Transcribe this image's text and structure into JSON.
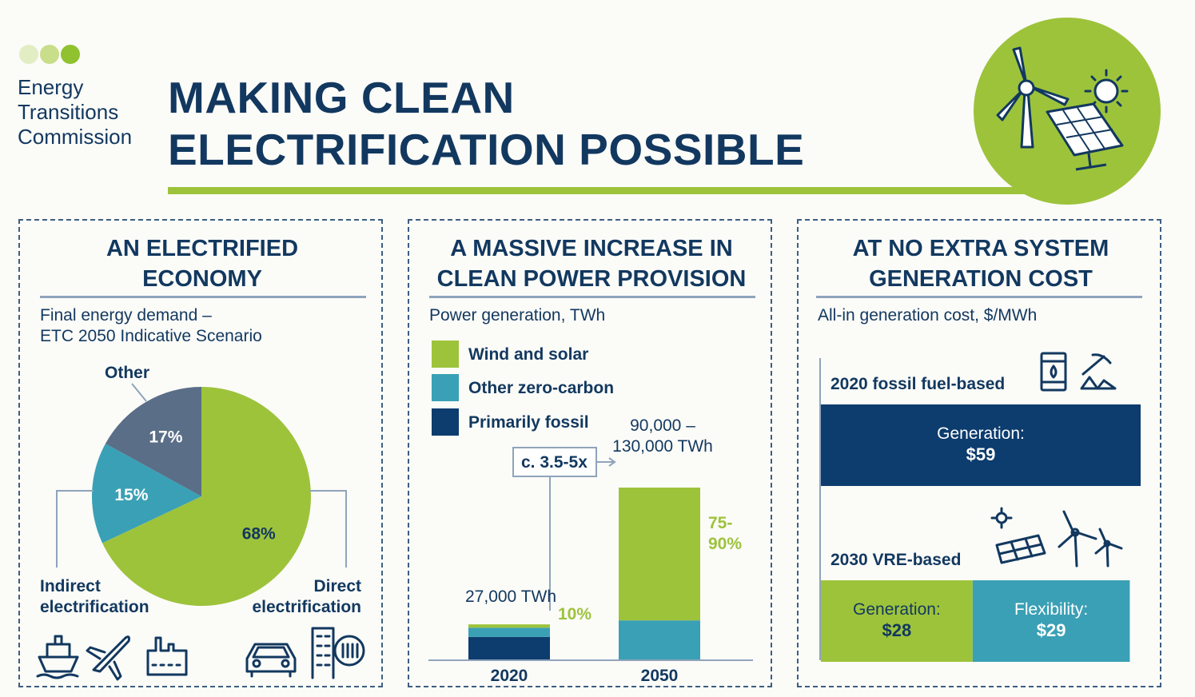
{
  "colors": {
    "navy": "#12385f",
    "wind_solar": "#9dc33b",
    "other_zero_carbon": "#3aa0b5",
    "primarily_fossil": "#0d3c6e",
    "other_slice": "#5a6e87",
    "logo_dot_1": "#e3edc4",
    "logo_dot_2": "#c8de8a",
    "logo_dot_3": "#8fc22e"
  },
  "logo": {
    "line1": "Energy",
    "line2": "Transitions",
    "line3": "Commission"
  },
  "header": {
    "title_line1": "MAKING CLEAN",
    "title_line2": "ELECTRIFICATION POSSIBLE",
    "hero_icons": [
      "wind-turbine-icon",
      "sun-icon",
      "solar-panel-icon"
    ]
  },
  "panel1": {
    "title_line1": "AN ELECTRIFIED",
    "title_line2": "ECONOMY",
    "subtitle_line1": "Final energy demand –",
    "subtitle_line2": "ETC 2050 Indicative Scenario",
    "label_other": "Other",
    "label_indirect_line1": "Indirect",
    "label_indirect_line2": "electrification",
    "label_direct_line1": "Direct",
    "label_direct_line2": "electrification",
    "icons": [
      "ship-icon",
      "airplane-icon",
      "factory-icon",
      "car-icon",
      "building-heating-icon"
    ]
  },
  "panel2": {
    "title_line1": "A MASSIVE INCREASE IN",
    "title_line2": "CLEAN POWER PROVISION",
    "subtitle": "Power generation, TWh",
    "legend": [
      "Wind and solar",
      "Other zero-carbon",
      "Primarily fossil"
    ],
    "callout": "c. 3.5-5x",
    "total_2020": "27,000 TWh",
    "total_2050_line1": "90,000 –",
    "total_2050_line2": "130,000 TWh",
    "share_2020": "10%",
    "share_2050_line1": "75-",
    "share_2050_line2": "90%"
  },
  "panel3": {
    "title_line1": "AT NO EXTRA SYSTEM",
    "title_line2": "GENERATION COST",
    "subtitle": "All-in generation cost, $/MWh",
    "row1_label": "2020 fossil fuel-based",
    "row1_icons": [
      "oil-barrel-icon",
      "coal-mining-icon"
    ],
    "row2_label": "2030 VRE-based",
    "row2_icons": [
      "solar-panel-icon",
      "wind-turbine-icon"
    ]
  },
  "chart_data": [
    {
      "type": "pie",
      "title": "Final energy demand – ETC 2050 Indicative Scenario",
      "slices": [
        {
          "name": "Direct electrification",
          "value": 68,
          "label": "68%",
          "color": "#9dc33b"
        },
        {
          "name": "Indirect electrification",
          "value": 15,
          "label": "15%",
          "color": "#3aa0b5"
        },
        {
          "name": "Other",
          "value": 17,
          "label": "17%",
          "color": "#5a6e87"
        }
      ]
    },
    {
      "type": "bar",
      "title": "Power generation, TWh",
      "stacked": true,
      "categories": [
        "2020",
        "2050"
      ],
      "ylim": [
        0,
        130000
      ],
      "series": [
        {
          "name": "Primarily fossil",
          "values": [
            17500,
            0
          ],
          "color": "#0d3c6e"
        },
        {
          "name": "Other zero-carbon",
          "values": [
            7000,
            30000
          ],
          "color": "#3aa0b5"
        },
        {
          "name": "Wind and solar",
          "values": [
            2500,
            100000
          ],
          "color": "#9dc33b"
        }
      ]
    },
    {
      "type": "bar",
      "title": "All-in generation cost, $/MWh",
      "orientation": "horizontal",
      "stacked": true,
      "categories": [
        "2020 fossil fuel-based",
        "2030 VRE-based"
      ],
      "xlim": [
        0,
        59
      ],
      "segments": [
        [
          {
            "name": "Generation",
            "label_line1": "Generation:",
            "label_line2": "$59",
            "value": 59,
            "color": "#0d3c6e"
          }
        ],
        [
          {
            "name": "Generation",
            "label_line1": "Generation:",
            "label_line2": "$28",
            "value": 28,
            "color": "#9dc33b"
          },
          {
            "name": "Flexibility",
            "label_line1": "Flexibility:",
            "label_line2": "$29",
            "value": 29,
            "color": "#3aa0b5"
          }
        ]
      ]
    }
  ]
}
